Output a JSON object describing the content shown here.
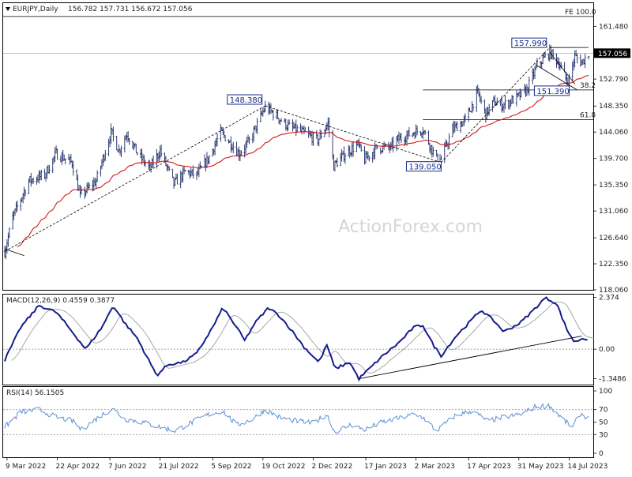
{
  "header": {
    "symbol": "EURJPY,Daily",
    "ohlc": "156.782 157.731 156.672 157.056"
  },
  "watermark": "ActionForex.com",
  "colors": {
    "bar": "#1b2a66",
    "sma": "#d11a1a",
    "macd": "#141e8a",
    "signal": "#a8a8a8",
    "rsi": "#5b8fd6",
    "fib": "#000000",
    "priceTag": "#000000"
  },
  "chart_data": [
    {
      "panel": "price",
      "type": "ohlc",
      "ylim": [
        118.06,
        165.3
      ],
      "y_ticks": [
        "161.480",
        "157.056",
        "152.790",
        "148.350",
        "144.060",
        "139.700",
        "135.350",
        "131.060",
        "126.640",
        "122.350",
        "118.060"
      ],
      "last_price": "157.056",
      "fe_label": "FE 100.0",
      "fe_level": 163.1,
      "fib_levels": [
        {
          "label": "38.2",
          "value": 151.0,
          "start": "2023-03-08"
        },
        {
          "label": "61.8",
          "value": 146.1,
          "start": "2023-03-08"
        }
      ],
      "annotations": [
        {
          "text": "148.380",
          "date": "2022-10-21",
          "value": 148.38
        },
        {
          "text": "157.990",
          "date": "2023-06-27",
          "value": 157.99
        },
        {
          "text": "151.390",
          "date": "2023-07-14",
          "value": 151.39
        },
        {
          "text": "139.050",
          "date": "2023-03-24",
          "value": 139.05
        }
      ],
      "keypoints": [
        [
          "2022-03-07",
          124.4
        ],
        [
          "2022-03-14",
          130.0
        ],
        [
          "2022-03-28",
          136.0
        ],
        [
          "2022-04-11",
          137.0
        ],
        [
          "2022-04-21",
          140.5
        ],
        [
          "2022-05-05",
          139.0
        ],
        [
          "2022-05-12",
          133.5
        ],
        [
          "2022-05-26",
          136.0
        ],
        [
          "2022-06-08",
          144.0
        ],
        [
          "2022-06-15",
          141.0
        ],
        [
          "2022-06-22",
          143.8
        ],
        [
          "2022-07-01",
          140.6
        ],
        [
          "2022-07-12",
          138.0
        ],
        [
          "2022-07-21",
          141.0
        ],
        [
          "2022-08-02",
          135.5
        ],
        [
          "2022-08-12",
          137.5
        ],
        [
          "2022-08-22",
          137.0
        ],
        [
          "2022-09-01",
          139.6
        ],
        [
          "2022-09-12",
          144.0
        ],
        [
          "2022-09-22",
          142.0
        ],
        [
          "2022-09-28",
          140.5
        ],
        [
          "2022-10-07",
          142.5
        ],
        [
          "2022-10-21",
          148.2
        ],
        [
          "2022-10-31",
          146.7
        ],
        [
          "2022-11-10",
          145.0
        ],
        [
          "2022-11-17",
          144.5
        ],
        [
          "2022-11-28",
          143.5
        ],
        [
          "2022-12-06",
          142.7
        ],
        [
          "2022-12-15",
          145.5
        ],
        [
          "2022-12-20",
          138.5
        ],
        [
          "2022-12-30",
          140.5
        ],
        [
          "2023-01-10",
          142.0
        ],
        [
          "2023-01-16",
          139.5
        ],
        [
          "2023-01-27",
          141.5
        ],
        [
          "2023-02-08",
          141.5
        ],
        [
          "2023-02-14",
          142.8
        ],
        [
          "2023-02-28",
          144.0
        ],
        [
          "2023-03-08",
          144.5
        ],
        [
          "2023-03-20",
          139.5
        ],
        [
          "2023-03-24",
          139.6
        ],
        [
          "2023-04-03",
          144.5
        ],
        [
          "2023-04-14",
          146.0
        ],
        [
          "2023-04-25",
          150.5
        ],
        [
          "2023-05-02",
          147.0
        ],
        [
          "2023-05-09",
          149.0
        ],
        [
          "2023-05-17",
          148.5
        ],
        [
          "2023-05-30",
          149.8
        ],
        [
          "2023-06-07",
          151.0
        ],
        [
          "2023-06-16",
          155.0
        ],
        [
          "2023-06-27",
          157.2
        ],
        [
          "2023-07-05",
          155.5
        ],
        [
          "2023-07-13",
          152.0
        ],
        [
          "2023-07-19",
          156.5
        ],
        [
          "2023-07-25",
          155.5
        ],
        [
          "2023-07-31",
          157.0
        ]
      ],
      "trendlines": [
        {
          "from": [
            "2022-03-07",
            124.4
          ],
          "to": [
            "2022-10-21",
            148.38
          ]
        },
        {
          "from": [
            "2022-10-21",
            148.38
          ],
          "to": [
            "2023-03-24",
            139.05
          ]
        },
        {
          "from": [
            "2023-03-24",
            139.05
          ],
          "to": [
            "2023-06-27",
            157.99
          ]
        },
        {
          "from": [
            "2022-03-07",
            124.8
          ],
          "to": [
            "2022-03-24",
            123.7
          ]
        },
        {
          "from": [
            "2023-06-27",
            157.99
          ],
          "to": [
            "2023-07-31",
            158.0
          ]
        },
        {
          "from": [
            "2023-06-16",
            155.0
          ],
          "to": [
            "2023-07-21",
            151.0
          ]
        },
        {
          "from": [
            "2023-06-27",
            157.2
          ],
          "to": [
            "2023-07-19",
            152.0
          ]
        }
      ]
    },
    {
      "panel": "macd",
      "title": "MACD(12,26,9) 0.4559 0.3877",
      "ylim": [
        -1.62,
        2.5
      ],
      "y_ticks": [
        "2.374",
        "0.00",
        "-1.3486"
      ],
      "keypoints": [
        [
          "2022-03-07",
          -0.5
        ],
        [
          "2022-03-21",
          1.0
        ],
        [
          "2022-04-06",
          2.0
        ],
        [
          "2022-04-21",
          1.7
        ],
        [
          "2022-05-05",
          0.8
        ],
        [
          "2022-05-17",
          0.0
        ],
        [
          "2022-05-31",
          1.0
        ],
        [
          "2022-06-10",
          2.0
        ],
        [
          "2022-06-20",
          1.2
        ],
        [
          "2022-07-01",
          0.5
        ],
        [
          "2022-07-18",
          -1.2
        ],
        [
          "2022-07-28",
          -0.7
        ],
        [
          "2022-08-10",
          -0.6
        ],
        [
          "2022-08-22",
          -0.2
        ],
        [
          "2022-09-05",
          1.0
        ],
        [
          "2022-09-14",
          1.9
        ],
        [
          "2022-09-26",
          1.0
        ],
        [
          "2022-10-03",
          0.4
        ],
        [
          "2022-10-12",
          1.2
        ],
        [
          "2022-10-24",
          1.9
        ],
        [
          "2022-11-03",
          1.5
        ],
        [
          "2022-11-14",
          0.8
        ],
        [
          "2022-11-24",
          0.1
        ],
        [
          "2022-12-07",
          -0.6
        ],
        [
          "2022-12-14",
          0.2
        ],
        [
          "2022-12-21",
          -0.9
        ],
        [
          "2023-01-03",
          -0.6
        ],
        [
          "2023-01-11",
          -1.35
        ],
        [
          "2023-01-20",
          -0.9
        ],
        [
          "2023-02-01",
          -0.3
        ],
        [
          "2023-02-15",
          0.3
        ],
        [
          "2023-02-28",
          1.0
        ],
        [
          "2023-03-08",
          1.1
        ],
        [
          "2023-03-17",
          0.2
        ],
        [
          "2023-03-24",
          -0.3
        ],
        [
          "2023-04-06",
          0.6
        ],
        [
          "2023-04-19",
          1.3
        ],
        [
          "2023-04-28",
          1.8
        ],
        [
          "2023-05-09",
          1.3
        ],
        [
          "2023-05-18",
          0.8
        ],
        [
          "2023-06-01",
          1.2
        ],
        [
          "2023-06-13",
          1.8
        ],
        [
          "2023-06-23",
          2.35
        ],
        [
          "2023-07-03",
          2.1
        ],
        [
          "2023-07-12",
          0.9
        ],
        [
          "2023-07-19",
          0.3
        ],
        [
          "2023-07-25",
          0.5
        ],
        [
          "2023-07-31",
          0.456
        ]
      ],
      "trendline": {
        "from": [
          "2023-01-11",
          -1.35
        ],
        "to": [
          "2023-07-25",
          0.6
        ]
      }
    },
    {
      "panel": "rsi",
      "title": "RSI(14) 56.1505",
      "ylim": [
        0,
        100
      ],
      "y_ticks": [
        "100",
        "70",
        "50",
        "30",
        "0"
      ],
      "levels": [
        70,
        30
      ],
      "keypoints": [
        [
          "2022-03-07",
          42
        ],
        [
          "2022-03-21",
          66
        ],
        [
          "2022-04-06",
          70
        ],
        [
          "2022-04-21",
          58
        ],
        [
          "2022-05-05",
          52
        ],
        [
          "2022-05-13",
          38
        ],
        [
          "2022-05-26",
          55
        ],
        [
          "2022-06-09",
          72
        ],
        [
          "2022-06-20",
          55
        ],
        [
          "2022-07-05",
          50
        ],
        [
          "2022-07-21",
          42
        ],
        [
          "2022-08-03",
          36
        ],
        [
          "2022-08-15",
          47
        ],
        [
          "2022-09-01",
          62
        ],
        [
          "2022-09-14",
          68
        ],
        [
          "2022-09-26",
          45
        ],
        [
          "2022-10-10",
          55
        ],
        [
          "2022-10-21",
          70
        ],
        [
          "2022-11-03",
          57
        ],
        [
          "2022-11-17",
          52
        ],
        [
          "2022-12-01",
          48
        ],
        [
          "2022-12-14",
          62
        ],
        [
          "2022-12-21",
          34
        ],
        [
          "2023-01-04",
          46
        ],
        [
          "2023-01-16",
          38
        ],
        [
          "2023-02-01",
          50
        ],
        [
          "2023-02-15",
          56
        ],
        [
          "2023-02-28",
          62
        ],
        [
          "2023-03-08",
          58
        ],
        [
          "2023-03-20",
          36
        ],
        [
          "2023-04-05",
          60
        ],
        [
          "2023-04-20",
          68
        ],
        [
          "2023-05-04",
          52
        ],
        [
          "2023-05-18",
          58
        ],
        [
          "2023-06-01",
          62
        ],
        [
          "2023-06-15",
          75
        ],
        [
          "2023-06-27",
          76
        ],
        [
          "2023-07-10",
          52
        ],
        [
          "2023-07-17",
          42
        ],
        [
          "2023-07-24",
          64
        ],
        [
          "2023-07-31",
          56.15
        ]
      ]
    }
  ],
  "x_axis": {
    "start": "2022-03-07",
    "end": "2023-07-31",
    "tick_labels": [
      {
        "date": "2022-03-09",
        "label": "9 Mar 2022"
      },
      {
        "date": "2022-04-22",
        "label": "22 Apr 2022"
      },
      {
        "date": "2022-06-07",
        "label": "7 Jun 2022"
      },
      {
        "date": "2022-07-21",
        "label": "21 Jul 2022"
      },
      {
        "date": "2022-09-05",
        "label": "5 Sep 2022"
      },
      {
        "date": "2022-10-19",
        "label": "19 Oct 2022"
      },
      {
        "date": "2022-12-02",
        "label": "2 Dec 2022"
      },
      {
        "date": "2023-01-17",
        "label": "17 Jan 2023"
      },
      {
        "date": "2023-03-02",
        "label": "2 Mar 2023"
      },
      {
        "date": "2023-04-17",
        "label": "17 Apr 2023"
      },
      {
        "date": "2023-05-31",
        "label": "31 May 2023"
      },
      {
        "date": "2023-07-14",
        "label": "14 Jul 2023"
      }
    ]
  }
}
